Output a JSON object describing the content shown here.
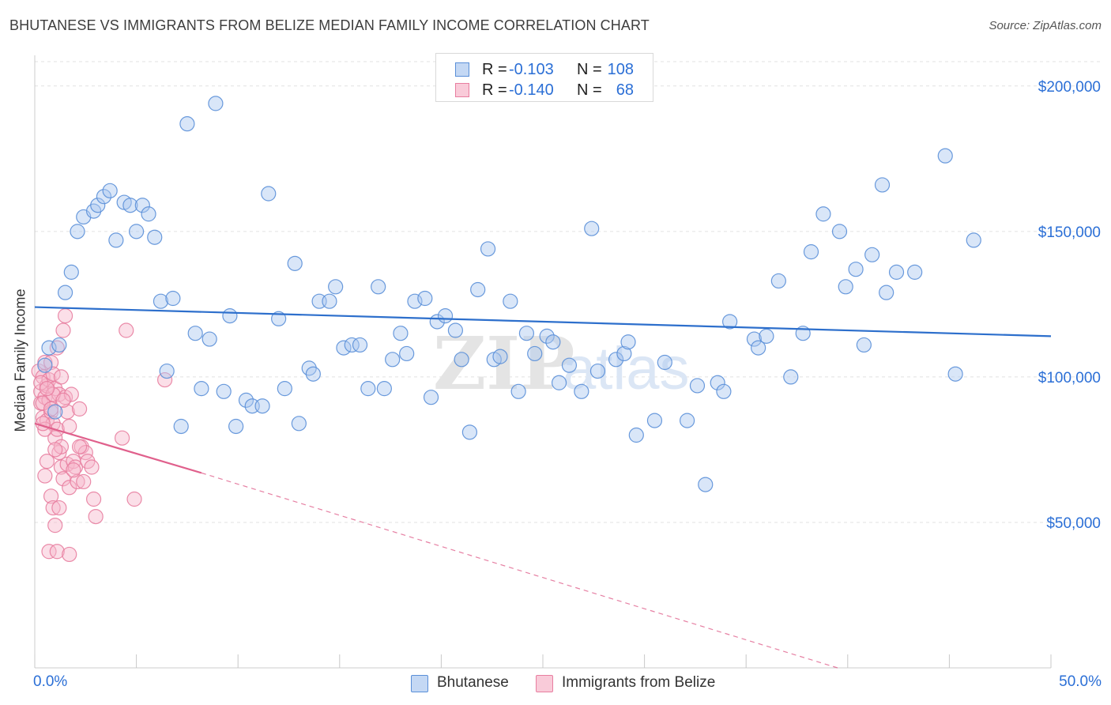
{
  "title": "BHUTANESE VS IMMIGRANTS FROM BELIZE MEDIAN FAMILY INCOME CORRELATION CHART",
  "source": "Source: ZipAtlas.com",
  "watermark": {
    "zip": "ZIP",
    "atlas": "atlas"
  },
  "colors": {
    "blue_fill": "#aac8f0",
    "blue_stroke": "#5a8fd8",
    "blue_line": "#2d6fcc",
    "pink_fill": "#f7b8cc",
    "pink_stroke": "#e87ea0",
    "pink_line": "#e0608c",
    "grid": "#e2e2e2",
    "tick_text": "#2b6fd6"
  },
  "legend": {
    "series": [
      {
        "r_label": "R =",
        "r_value": "-0.103",
        "n_label": "N =",
        "n_value": "108"
      },
      {
        "r_label": "R =",
        "r_value": "-0.140",
        "n_label": "N =",
        "n_value": "68"
      }
    ]
  },
  "bottom_legend": {
    "items": [
      "Bhutanese",
      "Immigrants from Belize"
    ]
  },
  "x_axis": {
    "min_label": "0.0%",
    "max_label": "50.0%"
  },
  "chart_data": {
    "type": "scatter",
    "title": "BHUTANESE VS IMMIGRANTS FROM BELIZE MEDIAN FAMILY INCOME CORRELATION CHART",
    "xlabel": "",
    "ylabel": "Median Family Income",
    "xlim": [
      0,
      50
    ],
    "ylim": [
      0,
      210000
    ],
    "y_ticks": [
      {
        "value": 50000,
        "label": "$50,000"
      },
      {
        "value": 100000,
        "label": "$100,000"
      },
      {
        "value": 150000,
        "label": "$150,000"
      },
      {
        "value": 200000,
        "label": "$200,000"
      }
    ],
    "series": [
      {
        "name": "Bhutanese",
        "R": -0.103,
        "N": 108,
        "trend": {
          "x": [
            0,
            50
          ],
          "y": [
            124000,
            114000
          ],
          "dashed_after": null
        },
        "points": [
          [
            0.5,
            104000
          ],
          [
            0.7,
            110000
          ],
          [
            1.2,
            111000
          ],
          [
            1.5,
            129000
          ],
          [
            1.8,
            136000
          ],
          [
            2.1,
            150000
          ],
          [
            2.4,
            155000
          ],
          [
            2.9,
            157000
          ],
          [
            3.1,
            159000
          ],
          [
            3.4,
            162000
          ],
          [
            3.7,
            164000
          ],
          [
            4.0,
            147000
          ],
          [
            4.4,
            160000
          ],
          [
            4.7,
            159000
          ],
          [
            5.0,
            150000
          ],
          [
            5.3,
            159000
          ],
          [
            5.6,
            156000
          ],
          [
            5.9,
            148000
          ],
          [
            6.2,
            126000
          ],
          [
            6.5,
            102000
          ],
          [
            6.8,
            127000
          ],
          [
            7.2,
            83000
          ],
          [
            7.5,
            187000
          ],
          [
            7.9,
            115000
          ],
          [
            8.2,
            96000
          ],
          [
            8.6,
            113000
          ],
          [
            8.9,
            194000
          ],
          [
            9.3,
            95000
          ],
          [
            9.6,
            121000
          ],
          [
            9.9,
            83000
          ],
          [
            10.4,
            92000
          ],
          [
            10.7,
            90000
          ],
          [
            11.2,
            90000
          ],
          [
            11.5,
            163000
          ],
          [
            12.0,
            120000
          ],
          [
            12.3,
            96000
          ],
          [
            12.8,
            139000
          ],
          [
            13.0,
            84000
          ],
          [
            13.5,
            103000
          ],
          [
            13.7,
            101000
          ],
          [
            14.0,
            126000
          ],
          [
            14.5,
            126000
          ],
          [
            14.8,
            131000
          ],
          [
            15.2,
            110000
          ],
          [
            15.6,
            111000
          ],
          [
            16.0,
            111000
          ],
          [
            16.4,
            96000
          ],
          [
            16.9,
            131000
          ],
          [
            17.2,
            96000
          ],
          [
            17.6,
            106000
          ],
          [
            18.0,
            115000
          ],
          [
            18.3,
            108000
          ],
          [
            18.7,
            126000
          ],
          [
            19.2,
            127000
          ],
          [
            19.5,
            93000
          ],
          [
            19.8,
            119000
          ],
          [
            20.2,
            121000
          ],
          [
            20.7,
            116000
          ],
          [
            21.0,
            106000
          ],
          [
            21.4,
            81000
          ],
          [
            21.8,
            130000
          ],
          [
            22.3,
            144000
          ],
          [
            22.6,
            106000
          ],
          [
            22.9,
            107000
          ],
          [
            23.4,
            126000
          ],
          [
            23.8,
            95000
          ],
          [
            24.2,
            115000
          ],
          [
            24.6,
            108000
          ],
          [
            25.2,
            114000
          ],
          [
            25.5,
            112000
          ],
          [
            25.8,
            98000
          ],
          [
            26.3,
            104000
          ],
          [
            26.9,
            95000
          ],
          [
            27.4,
            151000
          ],
          [
            27.7,
            102000
          ],
          [
            28.6,
            106000
          ],
          [
            29.0,
            108000
          ],
          [
            29.2,
            112000
          ],
          [
            29.6,
            80000
          ],
          [
            30.5,
            85000
          ],
          [
            31.0,
            105000
          ],
          [
            32.1,
            85000
          ],
          [
            32.6,
            97000
          ],
          [
            33.0,
            63000
          ],
          [
            33.6,
            98000
          ],
          [
            33.9,
            95000
          ],
          [
            34.2,
            119000
          ],
          [
            35.4,
            113000
          ],
          [
            35.6,
            110000
          ],
          [
            36.0,
            114000
          ],
          [
            36.6,
            133000
          ],
          [
            37.2,
            100000
          ],
          [
            37.8,
            115000
          ],
          [
            38.2,
            143000
          ],
          [
            38.8,
            156000
          ],
          [
            39.6,
            150000
          ],
          [
            39.9,
            131000
          ],
          [
            40.4,
            137000
          ],
          [
            40.8,
            111000
          ],
          [
            41.2,
            142000
          ],
          [
            41.7,
            166000
          ],
          [
            41.9,
            129000
          ],
          [
            42.4,
            136000
          ],
          [
            43.3,
            136000
          ],
          [
            44.8,
            176000
          ],
          [
            45.3,
            101000
          ],
          [
            46.2,
            147000
          ],
          [
            1.0,
            88000
          ]
        ]
      },
      {
        "name": "Immigrants from Belize",
        "R": -0.14,
        "N": 68,
        "trend": {
          "x": [
            0,
            8.2
          ],
          "y": [
            84000,
            67000
          ],
          "dashed_to": [
            39.5,
            0
          ]
        },
        "points": [
          [
            0.2,
            102000
          ],
          [
            0.3,
            95000
          ],
          [
            0.3,
            91000
          ],
          [
            0.4,
            86000
          ],
          [
            0.4,
            100000
          ],
          [
            0.5,
            105000
          ],
          [
            0.5,
            93000
          ],
          [
            0.6,
            97000
          ],
          [
            0.6,
            85000
          ],
          [
            0.7,
            99000
          ],
          [
            0.7,
            92000
          ],
          [
            0.8,
            105000
          ],
          [
            0.8,
            88000
          ],
          [
            0.9,
            101000
          ],
          [
            0.9,
            84000
          ],
          [
            1.0,
            96000
          ],
          [
            1.0,
            79000
          ],
          [
            1.1,
            82000
          ],
          [
            1.1,
            110000
          ],
          [
            1.2,
            74000
          ],
          [
            1.2,
            94000
          ],
          [
            1.3,
            69000
          ],
          [
            1.3,
            76000
          ],
          [
            1.4,
            116000
          ],
          [
            1.4,
            65000
          ],
          [
            1.5,
            121000
          ],
          [
            1.5,
            93000
          ],
          [
            1.6,
            88000
          ],
          [
            1.6,
            70000
          ],
          [
            1.7,
            83000
          ],
          [
            1.7,
            62000
          ],
          [
            1.8,
            94000
          ],
          [
            1.9,
            71000
          ],
          [
            2.0,
            69000
          ],
          [
            2.1,
            64000
          ],
          [
            2.2,
            89000
          ],
          [
            2.3,
            76000
          ],
          [
            2.4,
            64000
          ],
          [
            2.5,
            74000
          ],
          [
            2.6,
            71000
          ],
          [
            2.8,
            69000
          ],
          [
            2.9,
            58000
          ],
          [
            3.0,
            52000
          ],
          [
            0.5,
            66000
          ],
          [
            0.6,
            71000
          ],
          [
            0.7,
            40000
          ],
          [
            0.8,
            59000
          ],
          [
            0.9,
            55000
          ],
          [
            1.0,
            49000
          ],
          [
            1.1,
            40000
          ],
          [
            1.2,
            55000
          ],
          [
            1.7,
            39000
          ],
          [
            1.0,
            75000
          ],
          [
            0.4,
            91000
          ],
          [
            0.5,
            82000
          ],
          [
            0.9,
            94000
          ],
          [
            1.3,
            100000
          ],
          [
            4.5,
            116000
          ],
          [
            4.3,
            79000
          ],
          [
            4.9,
            58000
          ],
          [
            6.4,
            99000
          ],
          [
            0.3,
            98000
          ],
          [
            0.6,
            96000
          ],
          [
            0.8,
            89000
          ],
          [
            1.4,
            92000
          ],
          [
            2.2,
            76000
          ],
          [
            1.9,
            68000
          ],
          [
            0.4,
            84000
          ]
        ]
      }
    ]
  }
}
